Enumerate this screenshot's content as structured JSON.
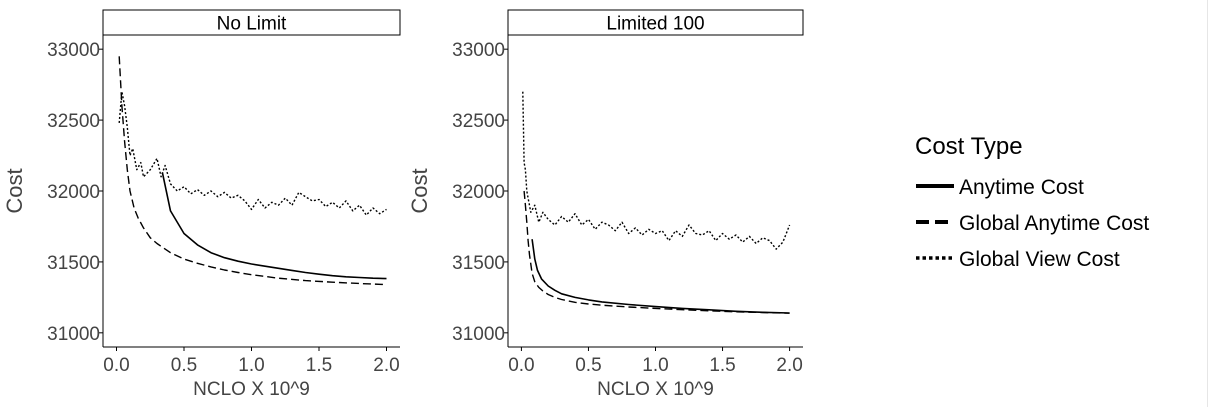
{
  "chart_data": {
    "type": "line",
    "facets": [
      {
        "strip_label": "No Limit",
        "xlabel": "NCLO X 10^9",
        "ylabel": "Cost",
        "xlim": [
          -0.1,
          2.1
        ],
        "ylim": [
          30900,
          33100
        ],
        "x_ticks": [
          0.0,
          0.5,
          1.0,
          1.5,
          2.0
        ],
        "x_tick_labels": [
          "0.0",
          "0.5",
          "1.0",
          "1.5",
          "2.0"
        ],
        "y_ticks": [
          31000,
          31500,
          32000,
          32500,
          33000
        ],
        "y_tick_labels": [
          "31000",
          "31500",
          "32000",
          "32500",
          "33000"
        ],
        "series": [
          {
            "name": "Anytime Cost",
            "linetype": "solid",
            "x": [
              0.34,
              0.4,
              0.5,
              0.6,
              0.7,
              0.8,
              0.9,
              1.0,
              1.1,
              1.2,
              1.3,
              1.4,
              1.5,
              1.6,
              1.7,
              1.8,
              1.9,
              2.0
            ],
            "y": [
              32130,
              31860,
              31700,
              31620,
              31565,
              31530,
              31505,
              31485,
              31470,
              31455,
              31440,
              31425,
              31413,
              31403,
              31395,
              31390,
              31385,
              31382
            ]
          },
          {
            "name": "Global Anytime Cost",
            "linetype": "dashed",
            "x": [
              0.02,
              0.04,
              0.06,
              0.08,
              0.1,
              0.13,
              0.16,
              0.2,
              0.25,
              0.3,
              0.4,
              0.5,
              0.6,
              0.7,
              0.8,
              0.9,
              1.0,
              1.2,
              1.4,
              1.6,
              1.8,
              2.0
            ],
            "y": [
              32950,
              32600,
              32350,
              32150,
              32000,
              31880,
              31810,
              31740,
              31670,
              31630,
              31565,
              31520,
              31490,
              31465,
              31443,
              31425,
              31410,
              31385,
              31368,
              31357,
              31348,
              31340
            ]
          },
          {
            "name": "Global View Cost",
            "linetype": "dotted",
            "x": [
              0.02,
              0.04,
              0.06,
              0.08,
              0.1,
              0.12,
              0.15,
              0.18,
              0.2,
              0.25,
              0.3,
              0.33,
              0.36,
              0.4,
              0.45,
              0.5,
              0.55,
              0.6,
              0.65,
              0.7,
              0.75,
              0.8,
              0.85,
              0.9,
              0.95,
              1.0,
              1.05,
              1.1,
              1.15,
              1.2,
              1.25,
              1.3,
              1.35,
              1.4,
              1.45,
              1.5,
              1.55,
              1.6,
              1.65,
              1.7,
              1.75,
              1.8,
              1.85,
              1.9,
              1.95,
              2.0
            ],
            "y": [
              32480,
              32700,
              32600,
              32450,
              32250,
              32300,
              32150,
              32200,
              32100,
              32150,
              32230,
              32100,
              32180,
              32050,
              32000,
              32030,
              31980,
              32010,
              31970,
              32000,
              31960,
              31990,
              31950,
              31970,
              31930,
              31870,
              31940,
              31880,
              31920,
              31900,
              31950,
              31900,
              31990,
              31960,
              31930,
              31940,
              31890,
              31920,
              31880,
              31930,
              31860,
              31900,
              31830,
              31880,
              31840,
              31870
            ]
          }
        ]
      },
      {
        "strip_label": "Limited 100",
        "xlabel": "NCLO X 10^9",
        "ylabel": "Cost",
        "xlim": [
          -0.1,
          2.1
        ],
        "ylim": [
          30900,
          33100
        ],
        "x_ticks": [
          0.0,
          0.5,
          1.0,
          1.5,
          2.0
        ],
        "x_tick_labels": [
          "0.0",
          "0.5",
          "1.0",
          "1.5",
          "2.0"
        ],
        "y_ticks": [
          31000,
          31500,
          32000,
          32500,
          33000
        ],
        "y_tick_labels": [
          "31000",
          "31500",
          "32000",
          "32500",
          "33000"
        ],
        "series": [
          {
            "name": "Anytime Cost",
            "linetype": "solid",
            "x": [
              0.08,
              0.1,
              0.12,
              0.15,
              0.2,
              0.25,
              0.3,
              0.4,
              0.5,
              0.6,
              0.8,
              1.0,
              1.2,
              1.4,
              1.6,
              1.8,
              2.0
            ],
            "y": [
              31660,
              31520,
              31440,
              31380,
              31330,
              31300,
              31275,
              31250,
              31232,
              31218,
              31200,
              31185,
              31172,
              31162,
              31152,
              31145,
              31140
            ]
          },
          {
            "name": "Global Anytime Cost",
            "linetype": "dashed",
            "x": [
              0.02,
              0.03,
              0.04,
              0.05,
              0.06,
              0.08,
              0.1,
              0.13,
              0.16,
              0.2,
              0.25,
              0.3,
              0.4,
              0.5,
              0.6,
              0.8,
              1.0,
              1.2,
              1.4,
              1.6,
              1.8,
              2.0
            ],
            "y": [
              32000,
              31900,
              31780,
              31650,
              31550,
              31420,
              31360,
              31320,
              31295,
              31270,
              31250,
              31235,
              31215,
              31203,
              31195,
              31182,
              31172,
              31163,
              31155,
              31148,
              31143,
              31138
            ]
          },
          {
            "name": "Global View Cost",
            "linetype": "dotted",
            "x": [
              0.01,
              0.02,
              0.03,
              0.04,
              0.05,
              0.07,
              0.1,
              0.13,
              0.16,
              0.2,
              0.25,
              0.3,
              0.35,
              0.4,
              0.45,
              0.5,
              0.55,
              0.6,
              0.65,
              0.7,
              0.75,
              0.8,
              0.85,
              0.9,
              0.95,
              1.0,
              1.05,
              1.1,
              1.15,
              1.2,
              1.25,
              1.3,
              1.35,
              1.4,
              1.45,
              1.5,
              1.55,
              1.6,
              1.65,
              1.7,
              1.75,
              1.8,
              1.85,
              1.9,
              1.95,
              2.0
            ],
            "y": [
              32700,
              32200,
              32150,
              32000,
              31950,
              31850,
              31900,
              31780,
              31850,
              31800,
              31760,
              31820,
              31780,
              31840,
              31760,
              31800,
              31730,
              31780,
              31760,
              31720,
              31780,
              31700,
              31740,
              31690,
              31730,
              31700,
              31720,
              31650,
              31720,
              31680,
              31760,
              31700,
              31690,
              31720,
              31650,
              31700,
              31660,
              31690,
              31640,
              31680,
              31630,
              31670,
              31650,
              31590,
              31640,
              31760
            ]
          }
        ]
      }
    ],
    "legend": {
      "title": "Cost Type",
      "position": "right",
      "entries": [
        {
          "label": "Anytime Cost",
          "linetype": "solid"
        },
        {
          "label": "Global Anytime Cost",
          "linetype": "dashed"
        },
        {
          "label": "Global View Cost",
          "linetype": "dotted"
        }
      ]
    },
    "grid": false,
    "colors": {
      "line": "#000000",
      "text": "#444444",
      "axis": "#000000"
    }
  }
}
